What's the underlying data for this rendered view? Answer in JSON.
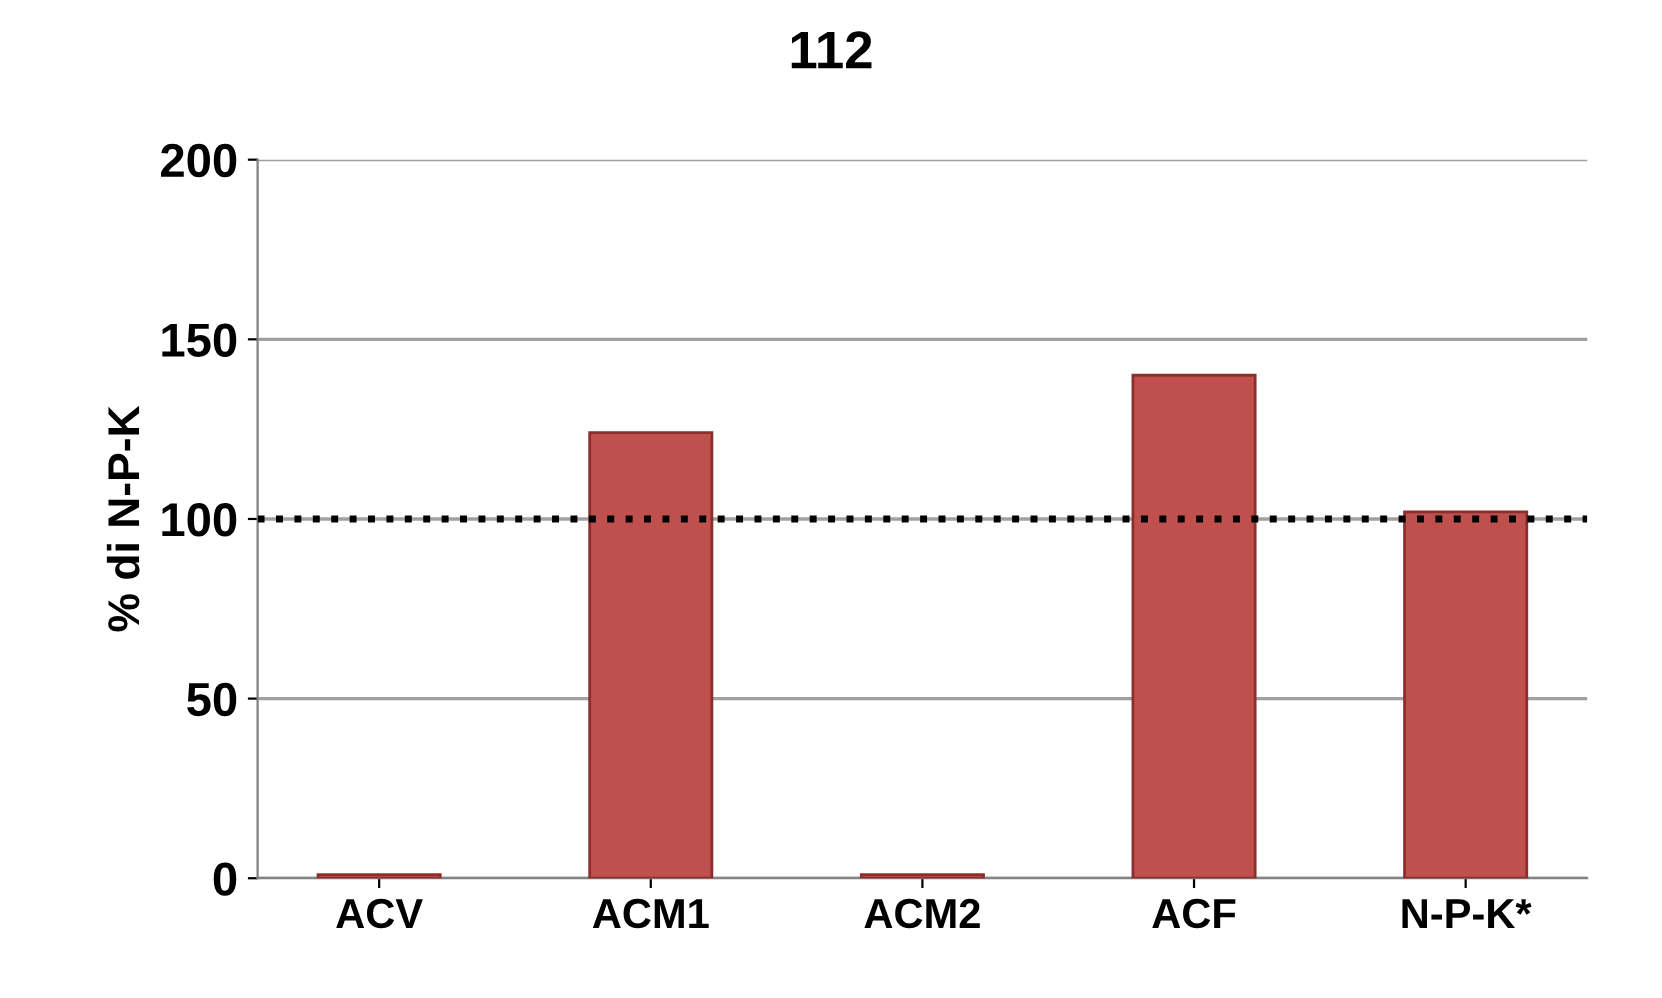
{
  "chart_data": {
    "type": "bar",
    "title": "112",
    "ylabel": "% di N-P-K",
    "categories": [
      "ACV",
      "ACM1",
      "ACM2",
      "ACF",
      "N-P-K*"
    ],
    "values": [
      1,
      124,
      1,
      140,
      102
    ],
    "color": "#c0504d",
    "ylim": [
      0,
      200
    ],
    "yticks": [
      0,
      50,
      100,
      150,
      200
    ],
    "grid": "y",
    "ref_lines": [
      {
        "axis": "y",
        "value": 100,
        "color": "#000000",
        "line_style": "dotted"
      }
    ]
  }
}
